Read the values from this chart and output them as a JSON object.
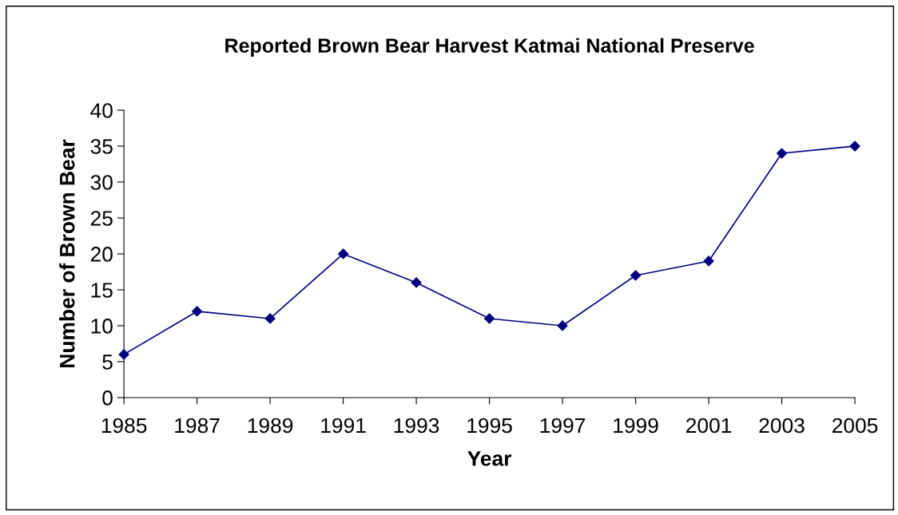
{
  "chart_data": {
    "type": "line",
    "title": "Reported Brown Bear Harvest Katmai National Preserve",
    "xlabel": "Year",
    "ylabel": "Number of Brown Bear",
    "x": [
      1985,
      1987,
      1989,
      1991,
      1993,
      1995,
      1997,
      1999,
      2001,
      2003,
      2005
    ],
    "series": [
      {
        "color": "#000080",
        "values": [
          6,
          12,
          11,
          20,
          16,
          11,
          10,
          17,
          19,
          34,
          35
        ]
      }
    ],
    "xlim": [
      1985,
      2005
    ],
    "xticks": [
      1985,
      1987,
      1989,
      1991,
      1993,
      1995,
      1997,
      1999,
      2001,
      2003,
      2005
    ],
    "ylim": [
      0,
      40
    ],
    "yticks": [
      0,
      5,
      10,
      15,
      20,
      25,
      30,
      35,
      40
    ],
    "marker": "diamond",
    "line_style": "solid",
    "grid": false,
    "legend": false
  }
}
